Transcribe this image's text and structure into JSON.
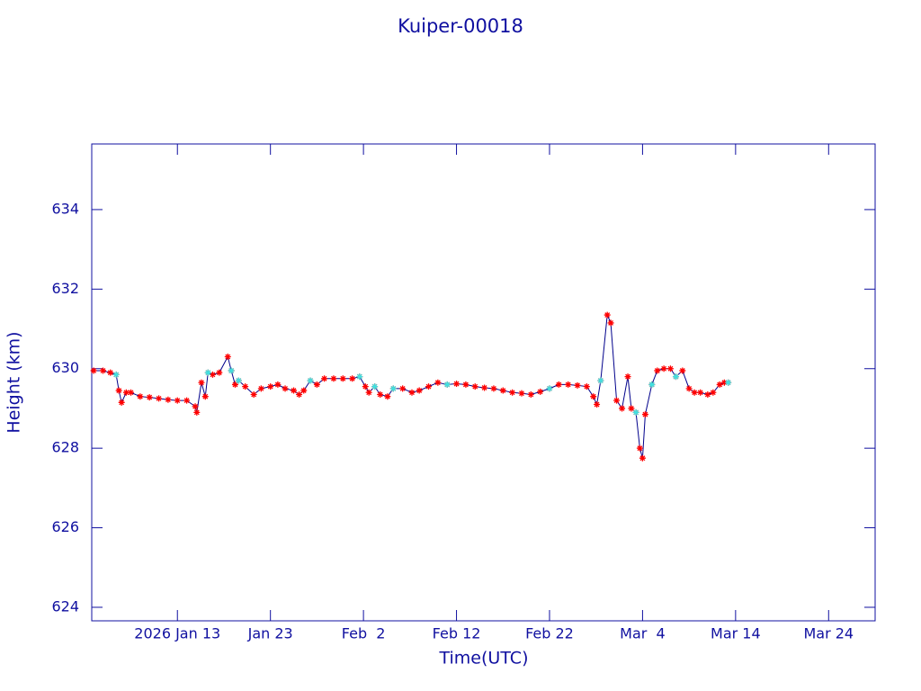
{
  "chart_data": {
    "type": "line",
    "title": "Kuiper-00018",
    "x_label": "Time(UTC)",
    "y_label": "Height (km)",
    "xlim": [
      "2026-01-03T19:00",
      "2026-03-29T00:00"
    ],
    "xticks": [
      {
        "value": "2026-01-13T00:00",
        "label": "2026 Jan 13"
      },
      {
        "value": "2026-01-23T00:00",
        "label": "Jan 23"
      },
      {
        "value": "2026-02-02T00:00",
        "label": "Feb  2"
      },
      {
        "value": "2026-02-12T00:00",
        "label": "Feb 12"
      },
      {
        "value": "2026-02-22T00:00",
        "label": "Feb 22"
      },
      {
        "value": "2026-03-04T00:00",
        "label": "Mar  4"
      },
      {
        "value": "2026-03-14T00:00",
        "label": "Mar 14"
      },
      {
        "value": "2026-03-24T00:00",
        "label": "Mar 24"
      }
    ],
    "ylim": [
      623.66,
      635.65
    ],
    "yticks": [
      624,
      626,
      628,
      630,
      632,
      634
    ],
    "axis_color": "#1010a0",
    "series": [
      {
        "color": "#ff0000",
        "line_color": "#00008b",
        "x": [
          "2026-01-04T00:00",
          "2026-01-05T00:00",
          "2026-01-05T19:00",
          "2026-01-06T10:00",
          "2026-01-06T17:00",
          "2026-01-07T00:00",
          "2026-01-07T12:00",
          "2026-01-08T00:00",
          "2026-01-09T00:00",
          "2026-01-10T00:00",
          "2026-01-11T00:00",
          "2026-01-12T00:00",
          "2026-01-13T00:00",
          "2026-01-14T00:00",
          "2026-01-14T22:00",
          "2026-01-15T02:00",
          "2026-01-15T14:00",
          "2026-01-16T00:00",
          "2026-01-16T07:00",
          "2026-01-16T19:00",
          "2026-01-17T12:00",
          "2026-01-18T10:00",
          "2026-01-18T19:00",
          "2026-01-19T05:00",
          "2026-01-19T14:00",
          "2026-01-20T07:00",
          "2026-01-21T05:00",
          "2026-01-22T00:00",
          "2026-01-23T00:00",
          "2026-01-23T19:00",
          "2026-01-24T14:00",
          "2026-01-25T12:00",
          "2026-01-26T02:00",
          "2026-01-26T14:00",
          "2026-01-27T07:00",
          "2026-01-28T00:00",
          "2026-01-28T19:00",
          "2026-01-29T19:00",
          "2026-01-30T19:00",
          "2026-01-31T19:00",
          "2026-02-01T14:00",
          "2026-02-02T05:00",
          "2026-02-02T14:00",
          "2026-02-03T05:00",
          "2026-02-03T19:00",
          "2026-02-04T14:00",
          "2026-02-05T05:00",
          "2026-02-06T05:00",
          "2026-02-07T05:00",
          "2026-02-08T00:00",
          "2026-02-09T00:00",
          "2026-02-10T00:00",
          "2026-02-11T00:00",
          "2026-02-12T00:00",
          "2026-02-13T00:00",
          "2026-02-14T00:00",
          "2026-02-15T00:00",
          "2026-02-16T00:00",
          "2026-02-17T00:00",
          "2026-02-18T00:00",
          "2026-02-19T00:00",
          "2026-02-20T00:00",
          "2026-02-21T00:00",
          "2026-02-22T00:00",
          "2026-02-23T00:00",
          "2026-02-24T00:00",
          "2026-02-25T00:00",
          "2026-02-26T00:00",
          "2026-02-26T17:00",
          "2026-02-27T02:00",
          "2026-02-27T12:00",
          "2026-02-28T05:00",
          "2026-02-28T14:00",
          "2026-03-01T05:00",
          "2026-03-01T19:00",
          "2026-03-02T10:00",
          "2026-03-02T19:00",
          "2026-03-03T07:00",
          "2026-03-03T17:00",
          "2026-03-04T00:00",
          "2026-03-04T07:00",
          "2026-03-05T00:00",
          "2026-03-05T14:00",
          "2026-03-06T07:00",
          "2026-03-07T00:00",
          "2026-03-07T14:00",
          "2026-03-08T07:00",
          "2026-03-09T00:00",
          "2026-03-09T14:00",
          "2026-03-10T05:00",
          "2026-03-11T00:00",
          "2026-03-11T14:00",
          "2026-03-12T07:00",
          "2026-03-12T19:00",
          "2026-03-13T05:00"
        ],
        "values": [
          629.95,
          629.95,
          629.9,
          629.85,
          629.45,
          629.15,
          629.4,
          629.4,
          629.3,
          629.28,
          629.25,
          629.22,
          629.2,
          629.2,
          629.05,
          628.9,
          629.65,
          629.3,
          629.9,
          629.85,
          629.9,
          630.3,
          629.95,
          629.6,
          629.7,
          629.55,
          629.35,
          629.5,
          629.55,
          629.6,
          629.5,
          629.45,
          629.35,
          629.45,
          629.7,
          629.6,
          629.75,
          629.75,
          629.75,
          629.75,
          629.8,
          629.55,
          629.4,
          629.55,
          629.35,
          629.3,
          629.5,
          629.5,
          629.4,
          629.45,
          629.55,
          629.65,
          629.6,
          629.62,
          629.6,
          629.55,
          629.52,
          629.5,
          629.45,
          629.4,
          629.38,
          629.35,
          629.42,
          629.5,
          629.6,
          629.6,
          629.58,
          629.55,
          629.3,
          629.1,
          629.7,
          631.35,
          631.15,
          629.2,
          629.0,
          629.8,
          629.0,
          628.9,
          628.0,
          627.75,
          628.85,
          629.6,
          629.95,
          630.0,
          630.0,
          629.8,
          629.95,
          629.5,
          629.4,
          629.4,
          629.35,
          629.4,
          629.6,
          629.65,
          629.65
        ]
      },
      {
        "color": "#40e0e0",
        "x": [
          "2026-01-06T10:00",
          "2026-01-16T07:00",
          "2026-01-18T19:00",
          "2026-01-19T14:00",
          "2026-01-27T07:00",
          "2026-02-01T14:00",
          "2026-02-03T05:00",
          "2026-02-05T05:00",
          "2026-02-11T00:00",
          "2026-02-22T00:00",
          "2026-02-27T12:00",
          "2026-03-03T07:00",
          "2026-03-05T00:00",
          "2026-03-07T14:00",
          "2026-03-13T05:00"
        ],
        "values": [
          629.85,
          629.9,
          629.95,
          629.7,
          629.7,
          629.8,
          629.55,
          629.5,
          629.6,
          629.5,
          629.7,
          628.9,
          629.6,
          629.8,
          629.65
        ]
      }
    ]
  }
}
